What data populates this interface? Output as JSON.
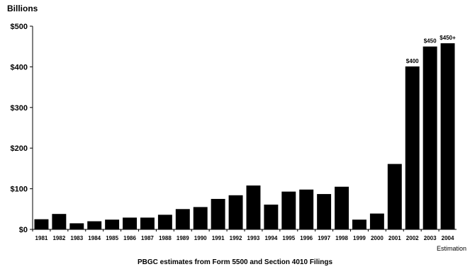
{
  "chart_data": {
    "type": "bar",
    "ylabel": "Billions",
    "caption": "PBGC estimates from Form 5500 and Section 4010 Filings",
    "x_note": "Estimation",
    "ylim": [
      0,
      500
    ],
    "yticks": [
      0,
      100,
      200,
      300,
      400,
      500
    ],
    "ytick_labels": [
      "$0",
      "$100",
      "$200",
      "$300",
      "$400",
      "$500"
    ],
    "categories": [
      "1981",
      "1982",
      "1983",
      "1984",
      "1985",
      "1986",
      "1987",
      "1988",
      "1989",
      "1990",
      "1991",
      "1992",
      "1993",
      "1994",
      "1995",
      "1996",
      "1997",
      "1998",
      "1999",
      "2000",
      "2001",
      "2002",
      "2003",
      "2004"
    ],
    "values": [
      25,
      38,
      15,
      20,
      24,
      29,
      29,
      36,
      50,
      55,
      75,
      84,
      108,
      61,
      93,
      98,
      87,
      105,
      24,
      39,
      161,
      401,
      450,
      458
    ],
    "data_labels": {
      "2002": "$400",
      "2003": "$450",
      "2004": "$450+"
    },
    "bar_color": "#000000",
    "grid": false
  }
}
